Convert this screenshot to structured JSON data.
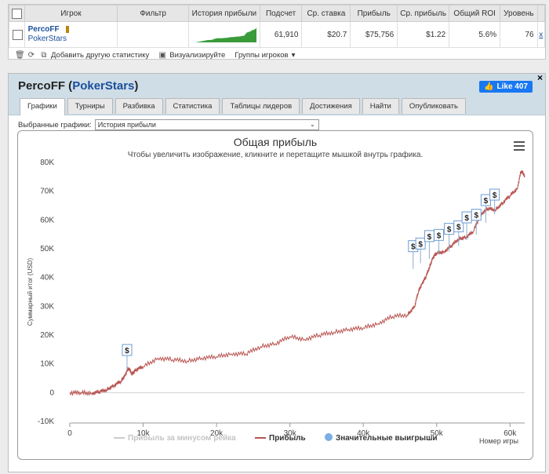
{
  "stats_table": {
    "headers": [
      "Игрок",
      "Фильтр",
      "История прибыли",
      "Подсчет",
      "Ср. ставка",
      "Прибыль",
      "Ср. прибыль",
      "Общий ROI",
      "Уровень"
    ],
    "row": {
      "player": "PercoFF",
      "network": "PokerStars",
      "count": "61,910",
      "avg_stake": "$20.7",
      "profit": "$75,756",
      "avg_profit": "$1.22",
      "roi": "5.6%",
      "level": "76",
      "remove": "x"
    },
    "toolbar": {
      "add_stat": "Добавить другую статистику",
      "visualize": "Визуализируйте",
      "groups": "Группы игроков"
    }
  },
  "profile": {
    "name": "PercoFF",
    "network": "PokerStars",
    "like_label": "Like 407",
    "close": "×",
    "tabs": [
      "Графики",
      "Турниры",
      "Разбивка",
      "Статистика",
      "Таблицы лидеров",
      "Достижения",
      "Найти",
      "Опубликовать"
    ],
    "active_tab": 0,
    "select_label": "Выбранные графики:",
    "select_value": "История прибыли"
  },
  "chart_data": {
    "type": "line",
    "title": "Общая прибыль",
    "subtitle": "Чтобы увеличить изображение, кликните и перетащите мышкой внутрь графика.",
    "ylabel": "Суммарный итог (USD)",
    "xlabel": "Номер игры",
    "ylim": [
      -10000,
      80000
    ],
    "xlim": [
      0,
      62000
    ],
    "y_ticks": [
      "-10K",
      "0",
      "10K",
      "20K",
      "30K",
      "40K",
      "50K",
      "60K",
      "70K",
      "80K"
    ],
    "x_ticks": [
      "0",
      "10k",
      "20k",
      "30k",
      "40k",
      "50k",
      "60k"
    ],
    "legend": [
      "Прибыль за минусом рейка",
      "Прибыль",
      "Значительные выигрыши"
    ],
    "series": [
      {
        "name": "Прибыль",
        "color": "#b85450",
        "x": [
          0,
          1500,
          3000,
          4000,
          5000,
          6000,
          7000,
          7500,
          8000,
          8500,
          9000,
          10000,
          12000,
          14000,
          16000,
          18000,
          20000,
          22000,
          24000,
          26000,
          28000,
          30000,
          32000,
          34000,
          36000,
          38000,
          40000,
          42000,
          44000,
          46000,
          47000,
          47500,
          48000,
          48500,
          49000,
          49500,
          50000,
          51000,
          52000,
          53000,
          54000,
          55000,
          56000,
          57000,
          58000,
          59000,
          60000,
          61000,
          61500,
          62000
        ],
        "values": [
          0,
          0,
          -200,
          300,
          1000,
          2500,
          4000,
          6000,
          8500,
          6500,
          8000,
          9000,
          12000,
          11500,
          11000,
          12000,
          12500,
          13500,
          13500,
          16000,
          17000,
          19500,
          18500,
          20000,
          21000,
          22000,
          22500,
          24000,
          26500,
          27000,
          30000,
          35000,
          38000,
          40000,
          43500,
          47000,
          48500,
          49000,
          51000,
          53500,
          54000,
          56000,
          62000,
          64000,
          63500,
          66000,
          68500,
          71000,
          77000,
          75500
        ]
      }
    ],
    "big_wins": [
      {
        "x": 7800,
        "y": 8000
      },
      {
        "x": 46800,
        "y": 43000
      },
      {
        "x": 47800,
        "y": 45000
      },
      {
        "x": 49000,
        "y": 46500
      },
      {
        "x": 50300,
        "y": 48000
      },
      {
        "x": 51700,
        "y": 49000
      },
      {
        "x": 53000,
        "y": 51000
      },
      {
        "x": 54100,
        "y": 53000
      },
      {
        "x": 55400,
        "y": 55000
      },
      {
        "x": 56700,
        "y": 59000
      },
      {
        "x": 57900,
        "y": 62000
      }
    ],
    "big_win_symbol": "$"
  }
}
